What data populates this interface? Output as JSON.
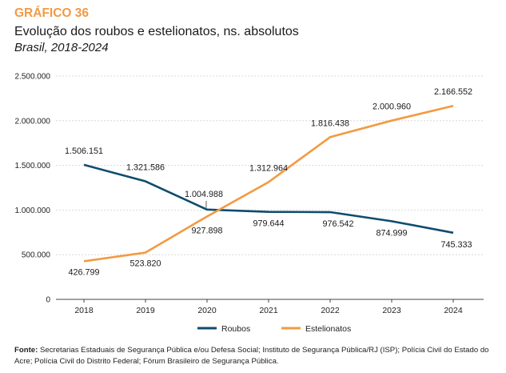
{
  "header": {
    "label": "GRÁFICO 36",
    "title": "Evolução dos roubos e estelionatos, ns. absolutos",
    "subtitle": "Brasil, 2018-2024"
  },
  "colors": {
    "accent": "#f39a42",
    "roubos": "#0f4c6e",
    "estelionatos": "#f39a42",
    "grid": "#d0d0d0"
  },
  "chart_data": {
    "type": "line",
    "categories": [
      "2018",
      "2019",
      "2020",
      "2021",
      "2022",
      "2023",
      "2024"
    ],
    "series": [
      {
        "name": "Roubos",
        "values": [
          1506151,
          1321586,
          1004988,
          979644,
          976542,
          874999,
          745333
        ],
        "labels": [
          "1.506.151",
          "1.321.586",
          "1.004.988",
          "979.644",
          "976.542",
          "874.999",
          "745.333"
        ]
      },
      {
        "name": "Estelionatos",
        "values": [
          426799,
          523820,
          927898,
          1312964,
          1816438,
          2000960,
          2166552
        ],
        "labels": [
          "426.799",
          "523.820",
          "927.898",
          "1.312.964",
          "1.816.438",
          "2.000.960",
          "2.166.552"
        ]
      }
    ],
    "ylim": [
      0,
      2500000
    ],
    "yticks": [
      0,
      500000,
      1000000,
      1500000,
      2000000,
      2500000
    ],
    "ytick_labels": [
      "0",
      "500.000",
      "1.000.000",
      "1.500.000",
      "2.000.000",
      "2.500.000"
    ],
    "grid": true,
    "legend": "bottom-center"
  },
  "footer": {
    "source_label": "Fonte:",
    "source_text": " Secretarias Estaduais de Segurança Pública e/ou Defesa Social; Instituto de Segurança Pública/RJ (ISP); Polícia Civil do Estado do Acre; Polícia Civil do Distrito Federal; Fórum Brasileiro de Segurança Pública."
  }
}
